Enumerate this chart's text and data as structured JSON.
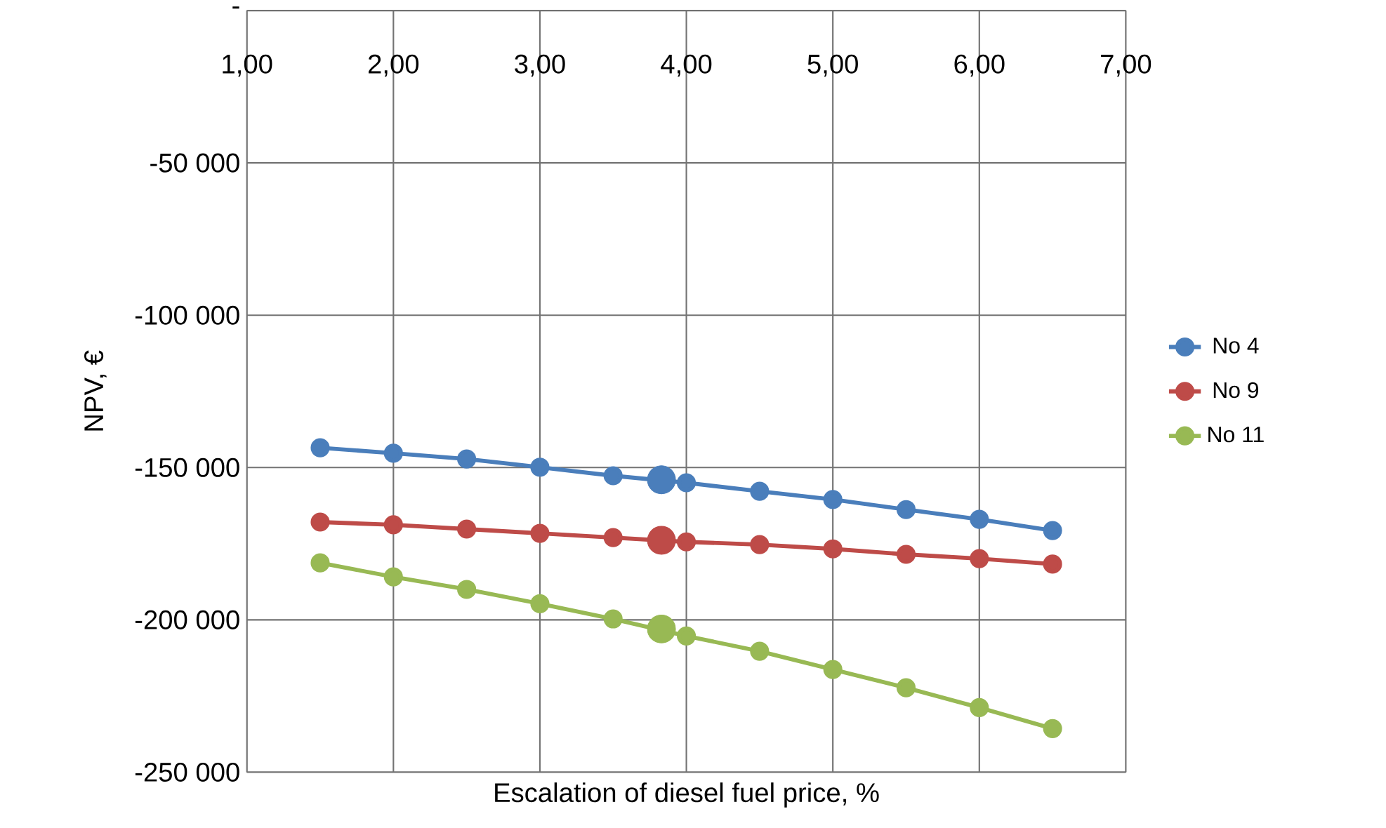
{
  "chart_data": {
    "type": "line",
    "xlabel": "Escalation of diesel fuel price, %",
    "ylabel": "NPV, €",
    "xlim": [
      1,
      7
    ],
    "xticks": [
      {
        "value": 1,
        "label": "1,00"
      },
      {
        "value": 2,
        "label": "2,00"
      },
      {
        "value": 3,
        "label": "3,00"
      },
      {
        "value": 4,
        "label": "4,00"
      },
      {
        "value": 5,
        "label": "5,00"
      },
      {
        "value": 6,
        "label": "6,00"
      },
      {
        "value": 7,
        "label": "7,00"
      }
    ],
    "ylim": [
      -250000,
      0
    ],
    "yticks": [
      {
        "value": -250000,
        "label": "-250 000"
      },
      {
        "value": -200000,
        "label": "-200 000"
      },
      {
        "value": -150000,
        "label": "-150 000"
      },
      {
        "value": -100000,
        "label": "-100 000"
      },
      {
        "value": -50000,
        "label": "-50 000"
      },
      {
        "value": 0,
        "label": "-"
      }
    ],
    "grid": true,
    "legend": "right",
    "marker": "circle",
    "line_style": "solid",
    "x": [
      1.5,
      2,
      2.5,
      3,
      3.5,
      3.83,
      4,
      4.5,
      5,
      5.5,
      6,
      6.5
    ],
    "series": [
      {
        "name": "No 4",
        "color": "#4a7ebb",
        "values": [
          -143500,
          -145300,
          -147200,
          -149900,
          -152700,
          null,
          -155000,
          -157800,
          -160500,
          -163800,
          -167000,
          -170700
        ]
      },
      {
        "name": "No 9",
        "color": "#be4b48",
        "values": [
          -167900,
          -168800,
          -170200,
          -171600,
          -173000,
          null,
          -174400,
          -175300,
          -176700,
          -178500,
          -179900,
          -181700
        ]
      },
      {
        "name": "No 11",
        "color": "#98b954",
        "values": [
          -181300,
          -185900,
          -190000,
          -194700,
          -199700,
          null,
          -205300,
          -210300,
          -216300,
          -222300,
          -228800,
          -235700
        ]
      },
      {
        "type": "scatter",
        "color": "#4a7ebb",
        "values": [
          null,
          null,
          null,
          null,
          null,
          -154000,
          null,
          null,
          null,
          null,
          null,
          null
        ]
      },
      {
        "type": "scatter",
        "color": "#be4b48",
        "values": [
          null,
          null,
          null,
          null,
          null,
          -173900,
          null,
          null,
          null,
          null,
          null,
          null
        ]
      },
      {
        "type": "scatter",
        "color": "#98b954",
        "values": [
          null,
          null,
          null,
          null,
          null,
          -203000,
          null,
          null,
          null,
          null,
          null,
          null
        ]
      }
    ]
  }
}
